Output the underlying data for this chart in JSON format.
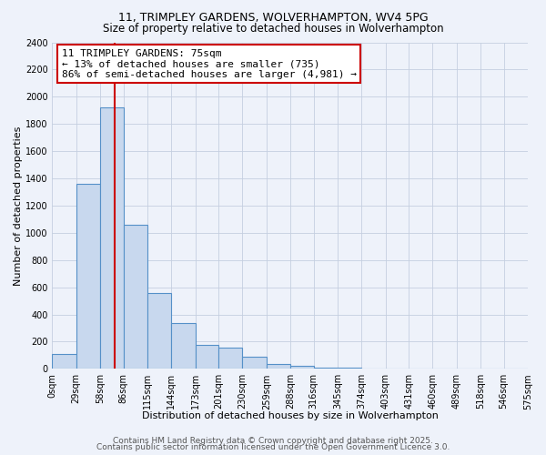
{
  "title": "11, TRIMPLEY GARDENS, WOLVERHAMPTON, WV4 5PG",
  "subtitle": "Size of property relative to detached houses in Wolverhampton",
  "xlabel": "Distribution of detached houses by size in Wolverhampton",
  "ylabel": "Number of detached properties",
  "property_size": 75,
  "annotation_line1": "11 TRIMPLEY GARDENS: 75sqm",
  "annotation_line2": "← 13% of detached houses are smaller (735)",
  "annotation_line3": "86% of semi-detached houses are larger (4,981) →",
  "bar_color": "#c8d8ee",
  "bar_edge_color": "#5590c8",
  "vline_color": "#cc0000",
  "annotation_box_color": "#ffffff",
  "annotation_box_edge": "#cc0000",
  "bin_edges": [
    0,
    29,
    58,
    86,
    115,
    144,
    173,
    201,
    230,
    259,
    288,
    316,
    345,
    374,
    403,
    431,
    460,
    489,
    518,
    546,
    575
  ],
  "bin_counts": [
    110,
    1360,
    1920,
    1060,
    560,
    340,
    175,
    155,
    90,
    35,
    20,
    12,
    8,
    5,
    4,
    3,
    2,
    1,
    1,
    0
  ],
  "ylim": [
    0,
    2400
  ],
  "yticks": [
    0,
    200,
    400,
    600,
    800,
    1000,
    1200,
    1400,
    1600,
    1800,
    2000,
    2200,
    2400
  ],
  "xtick_labels": [
    "0sqm",
    "29sqm",
    "58sqm",
    "86sqm",
    "115sqm",
    "144sqm",
    "173sqm",
    "201sqm",
    "230sqm",
    "259sqm",
    "288sqm",
    "316sqm",
    "345sqm",
    "374sqm",
    "403sqm",
    "431sqm",
    "460sqm",
    "489sqm",
    "518sqm",
    "546sqm",
    "575sqm"
  ],
  "footer1": "Contains HM Land Registry data © Crown copyright and database right 2025.",
  "footer2": "Contains public sector information licensed under the Open Government Licence 3.0.",
  "background_color": "#eef2fa",
  "grid_color": "#c5cfe0",
  "title_fontsize": 9,
  "subtitle_fontsize": 8.5,
  "xlabel_fontsize": 8,
  "ylabel_fontsize": 8,
  "tick_fontsize": 7,
  "footer_fontsize": 6.5,
  "annotation_fontsize": 8
}
